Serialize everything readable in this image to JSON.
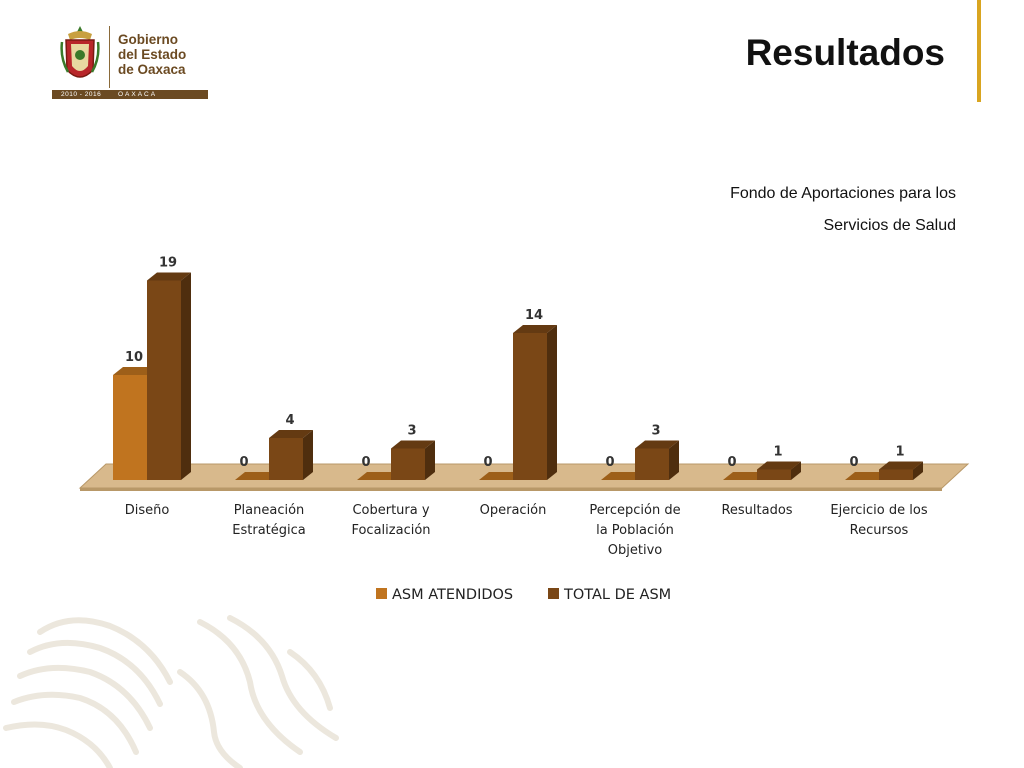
{
  "logo": {
    "line1": "Gobierno",
    "line2": "del Estado",
    "line3": "de Oaxaca",
    "years": "2010 - 2016",
    "state": "OAXACA"
  },
  "page": {
    "title": "Resultados",
    "subtitle_line1": "Fondo de Aportaciones para los",
    "subtitle_line2": "Servicios de Salud"
  },
  "colors": {
    "attended": "#c0741f",
    "total": "#7a4716",
    "floor": "#d8b98c",
    "accent": "#d9a520"
  },
  "chart_data": {
    "type": "bar",
    "categories": [
      [
        "Diseño"
      ],
      [
        "Planeación",
        "Estratégica"
      ],
      [
        "Cobertura y",
        "Focalización"
      ],
      [
        "Operación"
      ],
      [
        "Percepción de",
        "la Población",
        "Objetivo"
      ],
      [
        "Resultados"
      ],
      [
        "Ejercicio de los",
        "Recursos"
      ]
    ],
    "series": [
      {
        "name": "ASM ATENDIDOS",
        "values": [
          10,
          0,
          0,
          0,
          0,
          0,
          0
        ]
      },
      {
        "name": "TOTAL DE ASM",
        "values": [
          19,
          4,
          3,
          14,
          3,
          1,
          1
        ]
      }
    ],
    "ylim": [
      0,
      20
    ],
    "grid": false,
    "legend": "bottom",
    "style": "3d-column"
  }
}
